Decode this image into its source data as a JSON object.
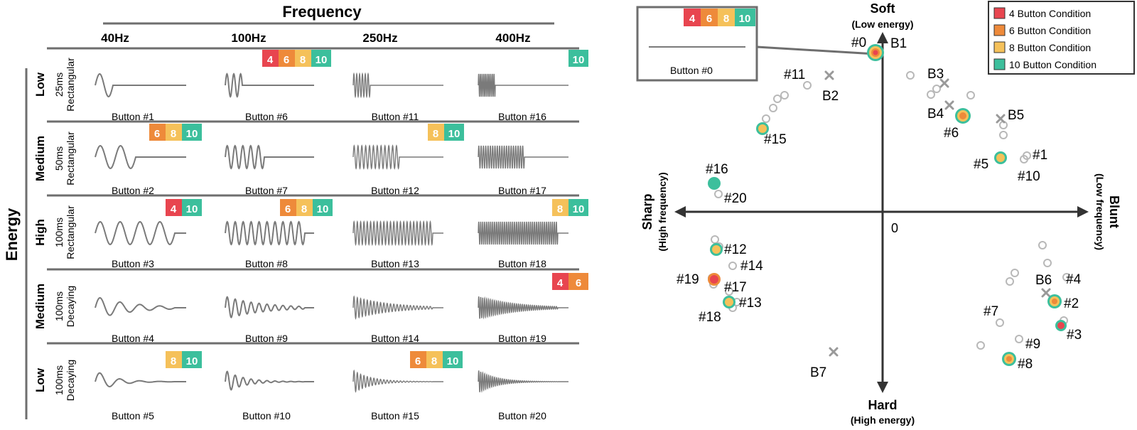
{
  "colors": {
    "c4": "#e8454f",
    "c6": "#ee8a3a",
    "c8": "#f5c15a",
    "c10": "#3cbf9c",
    "wave": "#7a7a7a",
    "line": "#6e6e6e",
    "axis": "#333333",
    "ghost": "#b8b8b8",
    "cross": "#999999"
  },
  "left": {
    "header_title": "Frequency",
    "side_title": "Energy",
    "frequencies": [
      "40Hz",
      "100Hz",
      "250Hz",
      "400Hz"
    ],
    "rows": [
      {
        "level": "Low",
        "duration": "25ms",
        "shape": "Rectangular",
        "buttons": [
          "Button #1",
          "Button #6",
          "Button #11",
          "Button #16"
        ]
      },
      {
        "level": "Medium",
        "duration": "50ms",
        "shape": "Rectangular",
        "buttons": [
          "Button #2",
          "Button #7",
          "Button #12",
          "Button #17"
        ]
      },
      {
        "level": "High",
        "duration": "100ms",
        "shape": "Rectangular",
        "buttons": [
          "Button #3",
          "Button #8",
          "Button #13",
          "Button #18"
        ]
      },
      {
        "level": "Medium",
        "duration": "100ms",
        "shape": "Decaying",
        "buttons": [
          "Button #4",
          "Button #9",
          "Button #14",
          "Button #19"
        ]
      },
      {
        "level": "Low",
        "duration": "100ms",
        "shape": "Decaying",
        "buttons": [
          "Button #5",
          "Button #10",
          "Button #15",
          "Button #20"
        ]
      }
    ],
    "badges": [
      {
        "row": 0,
        "col": 1,
        "labels": [
          "4",
          "6",
          "8",
          "10"
        ]
      },
      {
        "row": 0,
        "col": 3,
        "labels": [
          "10"
        ]
      },
      {
        "row": 1,
        "col": 0,
        "labels": [
          "6",
          "8",
          "10"
        ]
      },
      {
        "row": 1,
        "col": 2,
        "labels": [
          "8",
          "10"
        ]
      },
      {
        "row": 2,
        "col": 0,
        "labels": [
          "4",
          "10"
        ]
      },
      {
        "row": 2,
        "col": 1,
        "labels": [
          "6",
          "8",
          "10"
        ]
      },
      {
        "row": 2,
        "col": 3,
        "labels": [
          "8",
          "10"
        ]
      },
      {
        "row": 3,
        "col": 3,
        "labels": [
          "4",
          "6"
        ]
      },
      {
        "row": 4,
        "col": 0,
        "labels": [
          "8",
          "10"
        ]
      },
      {
        "row": 4,
        "col": 2,
        "labels": [
          "6",
          "8",
          "10"
        ]
      }
    ]
  },
  "right": {
    "axis_top": "Soft",
    "axis_top_sub": "(Low energy)",
    "axis_bottom": "Hard",
    "axis_bottom_sub": "(High energy)",
    "axis_left": "Sharp",
    "axis_left_sub": "(High frequency)",
    "axis_right": "Blunt",
    "axis_right_sub": "(Low frequency)",
    "origin_label": "0",
    "inset_badges": [
      "4",
      "6",
      "8",
      "10"
    ],
    "inset_label": "Button #0",
    "legend": [
      "4 Button Condition",
      "6 Button Condition",
      "8 Button Condition",
      "10 Button Condition"
    ],
    "point_labels": [
      "#0",
      "#1",
      "#2",
      "#3",
      "#4",
      "#5",
      "#6",
      "#7",
      "#8",
      "#9",
      "#10",
      "#11",
      "#12",
      "#13",
      "#14",
      "#15",
      "#16",
      "#17",
      "#18",
      "#19",
      "#20"
    ],
    "cross_labels": [
      "B1",
      "B2",
      "B3",
      "B4",
      "B5",
      "B6",
      "B7"
    ]
  }
}
